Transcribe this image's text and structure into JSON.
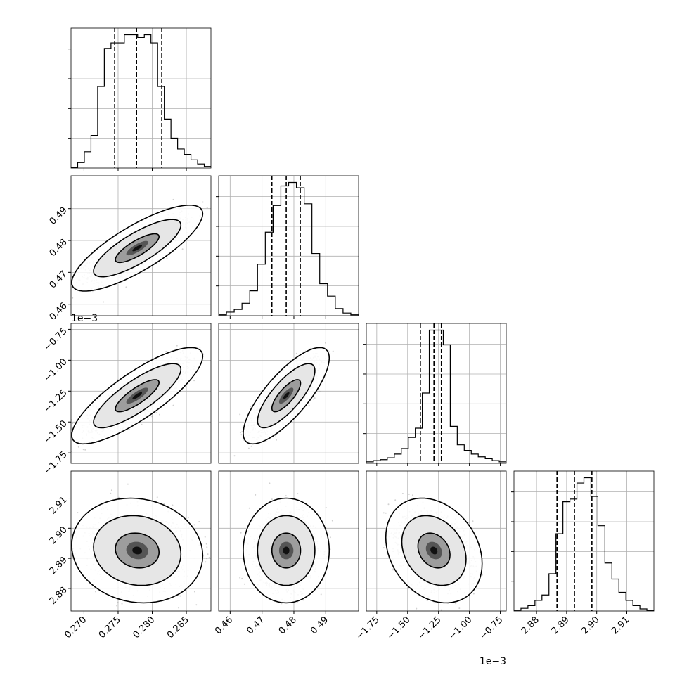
{
  "chart_data": {
    "type": "corner",
    "parameters": [
      {
        "range": [
          0.2681,
          0.2886
        ],
        "ticks": [
          0.27,
          0.275,
          0.28,
          0.285
        ],
        "tick_labels": [
          "0.270",
          "0.275",
          "0.280",
          "0.285"
        ],
        "offset_label": "",
        "quantiles": [
          0.2745,
          0.2777,
          0.2814
        ],
        "hist": [
          0.2,
          2,
          6,
          12,
          30,
          44,
          46,
          46,
          49,
          49,
          48,
          49,
          46,
          30,
          18,
          11,
          7,
          5,
          3,
          1.5,
          0.6
        ]
      },
      {
        "range": [
          0.4564,
          0.5003
        ],
        "ticks": [
          0.46,
          0.47,
          0.48,
          0.49
        ],
        "tick_labels": [
          "0.46",
          "0.47",
          "0.48",
          "0.49"
        ],
        "offset_label": "",
        "quantiles": [
          0.4731,
          0.4776,
          0.482
        ],
        "hist": [
          0.5,
          2,
          3.5,
          7,
          14,
          29,
          47,
          62,
          73,
          75,
          72,
          63,
          35,
          18,
          11,
          4,
          1.5,
          0.5
        ]
      },
      {
        "range": [
          -1.8344,
          -0.7021
        ],
        "ticks": [
          -1.75,
          -1.5,
          -1.25,
          -1.0,
          -0.75
        ],
        "tick_labels": [
          "−1.75",
          "−1.50",
          "−1.25",
          "−1.00",
          "−0.75"
        ],
        "offset_label": "1e−3",
        "quantiles": [
          -1.397,
          -1.287,
          -1.227
        ],
        "hist": [
          0.8,
          1.5,
          2,
          3,
          5,
          8,
          14,
          19,
          38,
          72,
          72,
          64,
          20,
          10,
          7,
          5,
          3.5,
          2.5,
          1.5,
          0.8
        ]
      },
      {
        "range": [
          2.8725,
          2.919
        ],
        "ticks": [
          2.88,
          2.89,
          2.9,
          2.91
        ],
        "tick_labels": [
          "2.88",
          "2.89",
          "2.90",
          "2.91"
        ],
        "offset_label": "",
        "quantiles": [
          2.8868,
          2.8926,
          2.8984
        ],
        "hist": [
          0.3,
          1,
          2,
          4,
          6,
          14,
          29,
          41,
          42,
          48,
          50,
          43,
          32,
          18,
          12,
          7,
          4,
          2,
          0.8,
          0.2
        ]
      }
    ],
    "pairs": [
      {
        "row": 1,
        "col": 0,
        "mean": [
          0.2778,
          0.4776
        ],
        "sd": [
          0.0032,
          0.0045
        ],
        "rho": 0.8
      },
      {
        "row": 2,
        "col": 0,
        "mean": [
          0.2778,
          -1.287
        ],
        "sd": [
          0.0032,
          0.13
        ],
        "rho": 0.82
      },
      {
        "row": 2,
        "col": 1,
        "mean": [
          0.4776,
          -1.287
        ],
        "sd": [
          0.0045,
          0.13
        ],
        "rho": 0.78
      },
      {
        "row": 3,
        "col": 0,
        "mean": [
          0.2778,
          2.8926
        ],
        "sd": [
          0.0032,
          0.0058
        ],
        "rho": -0.1
      },
      {
        "row": 3,
        "col": 1,
        "mean": [
          0.4776,
          2.8926
        ],
        "sd": [
          0.0045,
          0.0058
        ],
        "rho": 0.0
      },
      {
        "row": 3,
        "col": 2,
        "mean": [
          -1.287,
          2.8926
        ],
        "sd": [
          0.13,
          0.0058
        ],
        "rho": -0.25
      }
    ],
    "grid": true,
    "contour_levels": [
      0.39,
      0.86,
      0.99
    ]
  }
}
